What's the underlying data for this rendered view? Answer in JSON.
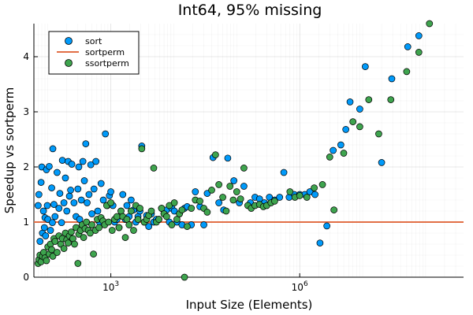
{
  "chart_data": {
    "type": "scatter",
    "title": "Int64, 95% missing",
    "xlabel": "Input Size (Elements)",
    "ylabel": "Speedup vs sortperm",
    "xscale": "log10",
    "xlim": [
      60,
      400000000
    ],
    "ylim": [
      0,
      4.6
    ],
    "x_ticks": [
      {
        "value": 1000,
        "base": "10",
        "exp": "3"
      },
      {
        "value": 1000000,
        "base": "10",
        "exp": "6"
      }
    ],
    "y_ticks": [
      0,
      1,
      2,
      3,
      4
    ],
    "grid": true,
    "legend_position": "top-left",
    "legend": [
      {
        "name": "sort",
        "kind": "marker",
        "color": "#009AFA"
      },
      {
        "name": "sortperm",
        "kind": "line",
        "color": "#E26F46"
      },
      {
        "name": "ssortperm",
        "kind": "marker",
        "color": "#3EA44E"
      }
    ],
    "series": [
      {
        "name": "sort",
        "color": "#009AFA",
        "points": [
          [
            70,
            1.3
          ],
          [
            72,
            1.5
          ],
          [
            75,
            0.65
          ],
          [
            78,
            1.72
          ],
          [
            80,
            2.0
          ],
          [
            82,
            0.8
          ],
          [
            85,
            1.2
          ],
          [
            88,
            0.9
          ],
          [
            90,
            1.08
          ],
          [
            92,
            0.75
          ],
          [
            95,
            1.95
          ],
          [
            98,
            1.3
          ],
          [
            100,
            1.05
          ],
          [
            105,
            2.01
          ],
          [
            110,
            0.85
          ],
          [
            115,
            1.62
          ],
          [
            118,
            0.99
          ],
          [
            120,
            2.33
          ],
          [
            125,
            1.32
          ],
          [
            130,
            1.1
          ],
          [
            140,
            1.9
          ],
          [
            150,
            1.25
          ],
          [
            155,
            1.52
          ],
          [
            165,
            0.99
          ],
          [
            170,
            2.12
          ],
          [
            180,
            1.35
          ],
          [
            190,
            1.8
          ],
          [
            200,
            1.2
          ],
          [
            210,
            2.1
          ],
          [
            220,
            1.47
          ],
          [
            230,
            1.58
          ],
          [
            240,
            2.05
          ],
          [
            260,
            1.35
          ],
          [
            280,
            1.1
          ],
          [
            300,
            1.6
          ],
          [
            310,
            2.0
          ],
          [
            320,
            1.05
          ],
          [
            340,
            1.4
          ],
          [
            360,
            2.1
          ],
          [
            380,
            1.75
          ],
          [
            400,
            2.42
          ],
          [
            420,
            1.35
          ],
          [
            450,
            1.5
          ],
          [
            480,
            2.04
          ],
          [
            500,
            1.15
          ],
          [
            540,
            1.6
          ],
          [
            580,
            2.1
          ],
          [
            620,
            1.2
          ],
          [
            660,
            1.0
          ],
          [
            700,
            1.7
          ],
          [
            760,
            1.4
          ],
          [
            820,
            2.6
          ],
          [
            880,
            1.3
          ],
          [
            950,
            1.48
          ],
          [
            1000,
            1.55
          ],
          [
            1080,
            1.3
          ],
          [
            1150,
            1.0
          ],
          [
            1250,
            1.05
          ],
          [
            1350,
            0.9
          ],
          [
            1450,
            1.2
          ],
          [
            1550,
            1.5
          ],
          [
            1700,
            1.05
          ],
          [
            1800,
            1.3
          ],
          [
            1950,
            1.1
          ],
          [
            2100,
            1.4
          ],
          [
            2300,
            1.22
          ],
          [
            2500,
            1.0
          ],
          [
            2700,
            1.1
          ],
          [
            2900,
            1.2
          ],
          [
            3100,
            2.38
          ],
          [
            3400,
            1.0
          ],
          [
            3700,
            1.12
          ],
          [
            4000,
            0.92
          ],
          [
            4400,
            1.15
          ],
          [
            4800,
            1.0
          ],
          [
            5300,
            1.05
          ],
          [
            5800,
            1.05
          ],
          [
            6400,
            1.25
          ],
          [
            7000,
            1.15
          ],
          [
            7700,
            1.22
          ],
          [
            8500,
            1.0
          ],
          [
            9300,
            1.25
          ],
          [
            10200,
            1.2
          ],
          [
            11200,
            1.0
          ],
          [
            12300,
            1.15
          ],
          [
            13500,
            0.95
          ],
          [
            14800,
            1.25
          ],
          [
            16300,
            1.28
          ],
          [
            19000,
            0.95
          ],
          [
            22000,
            1.55
          ],
          [
            26000,
            1.28
          ],
          [
            30000,
            0.95
          ],
          [
            34000,
            1.52
          ],
          [
            42000,
            2.17
          ],
          [
            52000,
            1.35
          ],
          [
            62000,
            1.22
          ],
          [
            72000,
            2.16
          ],
          [
            90000,
            1.75
          ],
          [
            110000,
            1.35
          ],
          [
            130000,
            1.65
          ],
          [
            165000,
            1.35
          ],
          [
            195000,
            1.45
          ],
          [
            230000,
            1.42
          ],
          [
            275000,
            1.35
          ],
          [
            330000,
            1.45
          ],
          [
            400000,
            1.4
          ],
          [
            480000,
            1.45
          ],
          [
            560000,
            1.9
          ],
          [
            680000,
            1.45
          ],
          [
            820000,
            1.5
          ],
          [
            1000000,
            1.5
          ],
          [
            1200000,
            1.5
          ],
          [
            1450000,
            1.55
          ],
          [
            1750000,
            1.5
          ],
          [
            2100000,
            0.62
          ],
          [
            2700000,
            0.93
          ],
          [
            3400000,
            2.3
          ],
          [
            4500000,
            2.4
          ],
          [
            5400000,
            2.68
          ],
          [
            6300000,
            3.18
          ],
          [
            9000000,
            3.05
          ],
          [
            11000000,
            3.82
          ],
          [
            20000000,
            2.08
          ],
          [
            29000000,
            3.6
          ],
          [
            52000000,
            4.18
          ],
          [
            78000000,
            4.38
          ]
        ]
      },
      {
        "name": "ssortperm",
        "color": "#3EA44E",
        "points": [
          [
            70,
            0.25
          ],
          [
            72,
            0.32
          ],
          [
            75,
            0.4
          ],
          [
            78,
            0.28
          ],
          [
            82,
            0.38
          ],
          [
            86,
            0.45
          ],
          [
            90,
            0.35
          ],
          [
            95,
            0.3
          ],
          [
            100,
            0.55
          ],
          [
            105,
            0.42
          ],
          [
            110,
            0.6
          ],
          [
            115,
            0.5
          ],
          [
            120,
            0.38
          ],
          [
            125,
            0.7
          ],
          [
            130,
            0.65
          ],
          [
            140,
            0.45
          ],
          [
            150,
            0.75
          ],
          [
            160,
            0.6
          ],
          [
            170,
            0.7
          ],
          [
            180,
            0.52
          ],
          [
            190,
            0.8
          ],
          [
            200,
            0.68
          ],
          [
            210,
            0.62
          ],
          [
            220,
            0.75
          ],
          [
            235,
            0.82
          ],
          [
            250,
            0.7
          ],
          [
            265,
            0.6
          ],
          [
            280,
            0.9
          ],
          [
            300,
            0.25
          ],
          [
            310,
            0.78
          ],
          [
            330,
            0.85
          ],
          [
            350,
            0.95
          ],
          [
            370,
            0.72
          ],
          [
            390,
            0.88
          ],
          [
            410,
            1.0
          ],
          [
            440,
            0.85
          ],
          [
            470,
            0.8
          ],
          [
            500,
            0.95
          ],
          [
            530,
            0.42
          ],
          [
            570,
            0.85
          ],
          [
            610,
            1.05
          ],
          [
            650,
            0.9
          ],
          [
            700,
            1.08
          ],
          [
            750,
            1.02
          ],
          [
            800,
            0.95
          ],
          [
            860,
            1.3
          ],
          [
            920,
            1.0
          ],
          [
            1000,
            1.35
          ],
          [
            1050,
            0.85
          ],
          [
            1150,
            1.05
          ],
          [
            1250,
            1.1
          ],
          [
            1350,
            0.9
          ],
          [
            1450,
            1.2
          ],
          [
            1550,
            1.1
          ],
          [
            1700,
            0.72
          ],
          [
            1800,
            1.05
          ],
          [
            1950,
            0.95
          ],
          [
            2100,
            1.2
          ],
          [
            2300,
            0.85
          ],
          [
            2500,
            1.3
          ],
          [
            2700,
            1.05
          ],
          [
            2900,
            1.25
          ],
          [
            3100,
            2.33
          ],
          [
            3400,
            1.0
          ],
          [
            3700,
            1.05
          ],
          [
            4000,
            1.12
          ],
          [
            4400,
            1.2
          ],
          [
            4800,
            1.98
          ],
          [
            5300,
            1.0
          ],
          [
            5800,
            1.05
          ],
          [
            6400,
            1.25
          ],
          [
            7000,
            1.15
          ],
          [
            7700,
            1.1
          ],
          [
            8500,
            1.3
          ],
          [
            9300,
            0.95
          ],
          [
            10200,
            1.35
          ],
          [
            11200,
            1.05
          ],
          [
            12300,
            1.15
          ],
          [
            13500,
            1.22
          ],
          [
            14800,
            0.0
          ],
          [
            16300,
            0.92
          ],
          [
            19000,
            1.25
          ],
          [
            22000,
            1.4
          ],
          [
            26000,
            1.38
          ],
          [
            30000,
            1.25
          ],
          [
            34000,
            1.18
          ],
          [
            40000,
            1.58
          ],
          [
            46000,
            2.22
          ],
          [
            52000,
            1.68
          ],
          [
            60000,
            1.45
          ],
          [
            68000,
            1.2
          ],
          [
            78000,
            1.65
          ],
          [
            88000,
            1.4
          ],
          [
            100000,
            1.55
          ],
          [
            115000,
            1.42
          ],
          [
            130000,
            1.98
          ],
          [
            150000,
            1.3
          ],
          [
            170000,
            1.25
          ],
          [
            195000,
            1.3
          ],
          [
            230000,
            1.32
          ],
          [
            265000,
            1.28
          ],
          [
            300000,
            1.3
          ],
          [
            350000,
            1.35
          ],
          [
            400000,
            1.38
          ],
          [
            700000,
            1.55
          ],
          [
            840000,
            1.45
          ],
          [
            1000000,
            1.48
          ],
          [
            1300000,
            1.45
          ],
          [
            1700000,
            1.62
          ],
          [
            2300000,
            1.68
          ],
          [
            3000000,
            2.18
          ],
          [
            3500000,
            1.22
          ],
          [
            5000000,
            2.25
          ],
          [
            7000000,
            2.82
          ],
          [
            9000000,
            2.73
          ],
          [
            12500000,
            3.22
          ],
          [
            18000000,
            2.6
          ],
          [
            28000000,
            3.22
          ],
          [
            50000000,
            3.73
          ],
          [
            78000000,
            4.08
          ],
          [
            115000000,
            4.6
          ]
        ]
      }
    ],
    "reference_line": {
      "name": "sortperm",
      "y": 1.0,
      "color": "#E26F46"
    }
  }
}
